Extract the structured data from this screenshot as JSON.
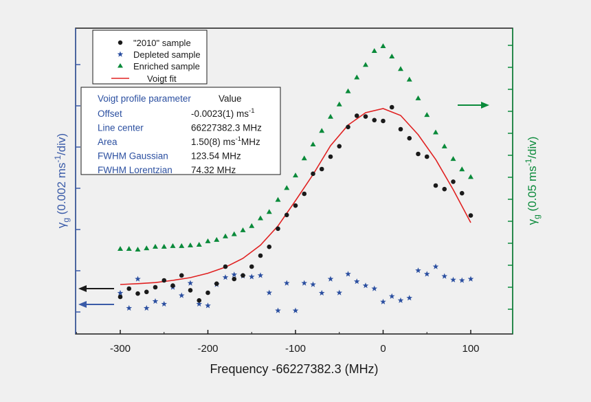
{
  "chart_data": {
    "type": "scatter",
    "title": "",
    "xlabel": "Frequency -66227382.3 (MHz)",
    "ylabel_left": "γg (0.002 ms-1/div)",
    "ylabel_right": "γg (0.05 ms-1/div)",
    "xlim": [
      -350,
      150
    ],
    "x_ticks": [
      -300,
      -200,
      -100,
      0,
      100
    ],
    "x_tick_labels": [
      "-300",
      "-200",
      "-100",
      "0",
      "100"
    ],
    "y_units_left": "div",
    "y_ticks_left_count": 7,
    "y_ticks_right_count": 13,
    "grid": false,
    "legend": {
      "placement": "top-left",
      "entries": [
        "\"2010\" sample",
        "Depleted sample",
        "Enriched sample",
        "Voigt fit"
      ]
    },
    "series": [
      {
        "name": "\"2010\" sample",
        "marker": "circle",
        "color": "#1a1a1a",
        "axis": "left",
        "x": [
          -300,
          -290,
          -280,
          -270,
          -260,
          -250,
          -240,
          -230,
          -220,
          -210,
          -200,
          -190,
          -180,
          -170,
          -160,
          -150,
          -140,
          -130,
          -120,
          -110,
          -100,
          -90,
          -80,
          -70,
          -60,
          -50,
          -40,
          -30,
          -20,
          -10,
          0,
          10,
          20,
          30,
          40,
          50,
          60,
          70,
          80,
          90,
          100
        ],
        "y": [
          0.6,
          0.9,
          0.72,
          0.78,
          0.95,
          1.2,
          1.01,
          1.38,
          0.84,
          0.47,
          0.75,
          1.08,
          1.7,
          1.25,
          1.38,
          1.7,
          2.1,
          2.42,
          3.08,
          3.58,
          3.92,
          4.35,
          5.08,
          5.25,
          5.7,
          6.08,
          6.78,
          7.19,
          7.16,
          7.03,
          7.0,
          7.5,
          6.7,
          6.37,
          5.8,
          5.7,
          4.65,
          4.52,
          4.79,
          4.37,
          3.56
        ]
      },
      {
        "name": "Depleted sample",
        "marker": "star",
        "color": "#2b4fa0",
        "axis": "left",
        "x": [
          -300,
          -290,
          -280,
          -270,
          -260,
          -250,
          -240,
          -230,
          -220,
          -210,
          -200,
          -190,
          -180,
          -170,
          -160,
          -150,
          -140,
          -130,
          -120,
          -110,
          -100,
          -90,
          -80,
          -70,
          -60,
          -50,
          -40,
          -30,
          -20,
          -10,
          0,
          10,
          20,
          30,
          40,
          50,
          60,
          70,
          80,
          90,
          100
        ],
        "y": [
          0.74,
          0.19,
          1.25,
          0.19,
          0.44,
          0.34,
          0.95,
          0.65,
          1.1,
          0.34,
          0.28,
          1.05,
          1.31,
          1.41,
          1.36,
          1.33,
          1.38,
          0.75,
          0.1,
          1.1,
          0.1,
          1.1,
          1.05,
          0.74,
          1.25,
          0.75,
          1.43,
          1.16,
          1.01,
          0.9,
          0.42,
          0.62,
          0.47,
          0.56,
          1.56,
          1.43,
          1.7,
          1.35,
          1.22,
          1.2,
          1.25
        ]
      },
      {
        "name": "Enriched sample",
        "marker": "triangle",
        "color": "#0a8a3a",
        "axis": "right",
        "x": [
          -300,
          -290,
          -280,
          -270,
          -260,
          -250,
          -240,
          -230,
          -220,
          -210,
          -200,
          -190,
          -180,
          -170,
          -160,
          -150,
          -140,
          -130,
          -120,
          -110,
          -100,
          -90,
          -80,
          -70,
          -60,
          -50,
          -40,
          -30,
          -20,
          -10,
          0,
          10,
          20,
          30,
          40,
          50,
          60,
          70,
          80,
          90,
          100
        ],
        "y": [
          2.93,
          2.93,
          2.9,
          2.96,
          3.03,
          3.03,
          3.06,
          3.06,
          3.09,
          3.12,
          3.28,
          3.34,
          3.5,
          3.6,
          3.78,
          3.97,
          4.32,
          4.61,
          5.16,
          5.7,
          6.27,
          7.05,
          7.68,
          8.3,
          8.94,
          9.5,
          10.1,
          10.73,
          11.3,
          11.93,
          12.15,
          11.68,
          11.11,
          10.63,
          9.78,
          9.02,
          8.23,
          7.59,
          7.02,
          6.55,
          6.2
        ]
      },
      {
        "name": "Voigt fit",
        "type": "line",
        "color": "#e02020",
        "axis": "left",
        "x": [
          -300,
          -280,
          -260,
          -240,
          -220,
          -200,
          -180,
          -160,
          -140,
          -120,
          -100,
          -80,
          -60,
          -40,
          -20,
          0,
          20,
          40,
          60,
          80,
          100
        ],
        "y": [
          1.05,
          1.08,
          1.12,
          1.2,
          1.3,
          1.46,
          1.68,
          2.0,
          2.48,
          3.18,
          4.1,
          5.05,
          6.1,
          6.85,
          7.3,
          7.45,
          7.2,
          6.5,
          5.6,
          4.5,
          3.3
        ]
      }
    ]
  },
  "parameter_table": {
    "header_param": "Voigt profile parameter",
    "header_value": "Value",
    "rows": [
      {
        "name": "Offset",
        "value": "-0.0023(1) ms",
        "sup": "-1",
        "suffix": ""
      },
      {
        "name": "Line center",
        "value": "66227382.3 MHz",
        "sup": "",
        "suffix": ""
      },
      {
        "name": "Area",
        "value": "1.50(8) ms",
        "sup": "-1",
        "suffix": "MHz"
      },
      {
        "name": "FWHM Gaussian",
        "value": "123.54 MHz",
        "sup": "",
        "suffix": ""
      },
      {
        "name": "FWHM Lorentzian",
        "value": "74.32 MHz",
        "sup": "",
        "suffix": ""
      }
    ]
  },
  "axis_labels": {
    "left_gamma": "γ",
    "left_sub": "g",
    "left_rest": " (0.002 ms",
    "left_sup": "-1",
    "left_end": "/div)",
    "right_gamma": "γ",
    "right_sub": "g",
    "right_rest": " (0.05 ms",
    "right_sup": "-1",
    "right_end": "/div)"
  },
  "colors": {
    "background": "#f0f0f0",
    "axis": "#1a1a1a",
    "left_axis": "#3a5ba8",
    "right_axis": "#0a8a3a",
    "fit": "#e02020",
    "table_text": "#2b4fa0"
  }
}
